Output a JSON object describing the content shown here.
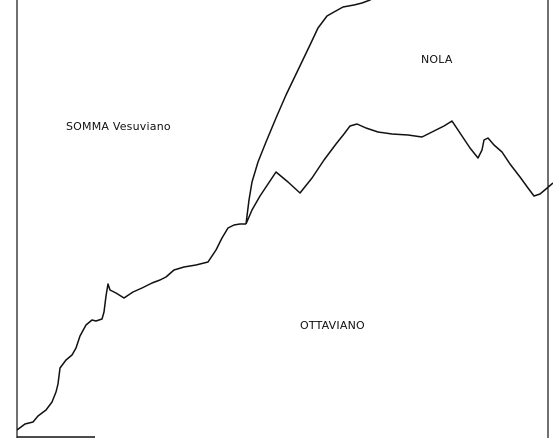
{
  "map": {
    "regions": [
      {
        "id": "somma",
        "label": "SOMMA Vesuviano"
      },
      {
        "id": "nola",
        "label": "NOLA"
      },
      {
        "id": "ottaviano",
        "label": "OTTAVIANO"
      }
    ],
    "line_color": "#111111",
    "background_color": "#ffffff"
  }
}
